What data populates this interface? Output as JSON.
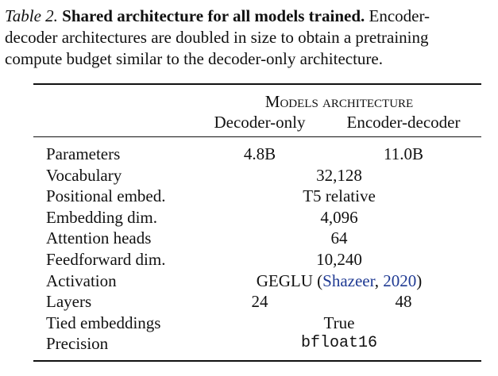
{
  "caption": {
    "label": "Table 2.",
    "title": "Shared architecture for all models trained.",
    "lines": [
      "Encoder-",
      "decoder architectures are doubled in size to obtain a pretraining",
      "compute budget similar to the decoder-only architecture."
    ]
  },
  "table": {
    "group_header": "Models architecture",
    "columns": [
      "Decoder-only",
      "Encoder-decoder"
    ],
    "rows": [
      {
        "label": "Parameters",
        "values": [
          "4.8B",
          "11.0B"
        ]
      },
      {
        "label": "Vocabulary",
        "values": [
          "32,128"
        ]
      },
      {
        "label": "Positional embed.",
        "values": [
          "T5 relative"
        ]
      },
      {
        "label": "Embedding dim.",
        "values": [
          "4,096"
        ]
      },
      {
        "label": "Attention heads",
        "values": [
          "64"
        ]
      },
      {
        "label": "Feedforward dim.",
        "values": [
          "10,240"
        ]
      },
      {
        "label": "Activation",
        "values": [
          [
            "GEGLU (",
            "Shazeer",
            ", ",
            "2020",
            ")"
          ]
        ]
      },
      {
        "label": "Layers",
        "values": [
          "24",
          "48"
        ]
      },
      {
        "label": "Tied embeddings",
        "values": [
          "True"
        ]
      },
      {
        "label": "Precision",
        "values": [
          "bfloat16"
        ]
      }
    ]
  }
}
